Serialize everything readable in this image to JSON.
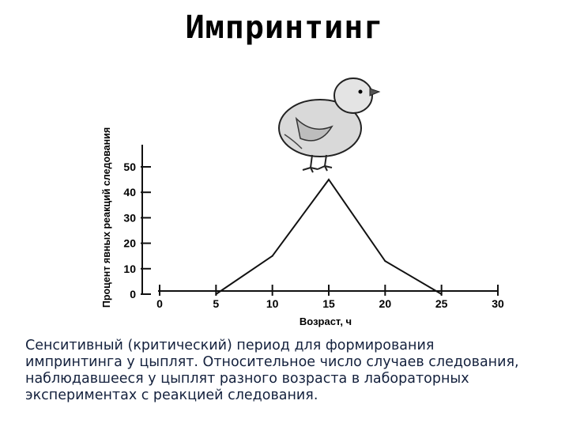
{
  "title": "Импринтинг",
  "caption_lines": [
    "Сенситивный (критический) период для формирования",
    "импринтинга у цыплят. Относительное число случаев следования,",
    "наблюдавшееся у цыплят разного возраста в лабораторных",
    "экспериментах с реакцией следования."
  ],
  "chart_data": {
    "type": "line",
    "title": "",
    "xlabel": "Возраст, ч",
    "ylabel": "Процент явных реакций следования",
    "x": [
      5,
      10,
      15,
      20,
      25
    ],
    "y": [
      0,
      15,
      45,
      13,
      0
    ],
    "xlim": [
      0,
      30
    ],
    "ylim": [
      0,
      50
    ],
    "xticks": [
      0,
      5,
      10,
      15,
      20,
      25,
      30
    ],
    "yticks": [
      0,
      10,
      20,
      30,
      40,
      50
    ],
    "grid": false,
    "line_color": "#111111"
  }
}
